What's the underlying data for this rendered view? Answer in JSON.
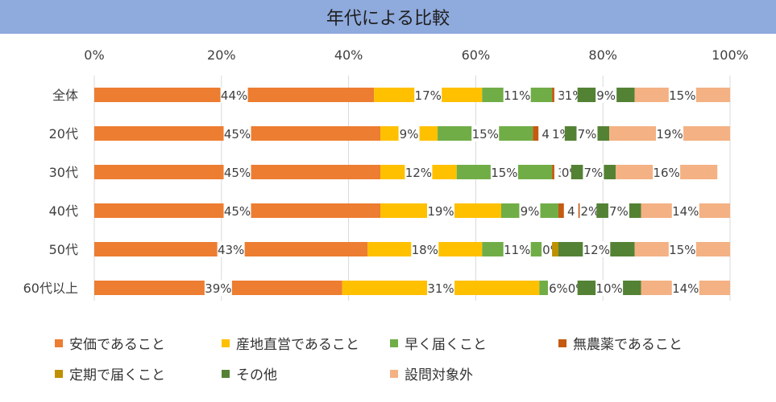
{
  "title": "年代による比較",
  "chart_data": {
    "type": "bar",
    "orientation": "horizontal",
    "stacked": "percent",
    "title": "年代による比較",
    "xlim": [
      0,
      100
    ],
    "x_ticks": [
      "0%",
      "20%",
      "40%",
      "60%",
      "80%",
      "100%"
    ],
    "grid": true,
    "legend_position": "bottom",
    "categories": [
      "全体",
      "20代",
      "30代",
      "40代",
      "50代",
      "60代以上"
    ],
    "series": [
      {
        "name": "安価であること",
        "color": "#ed7d31",
        "values": [
          44,
          45,
          45,
          45,
          43,
          39
        ],
        "labels": [
          "44%",
          "45%",
          "45%",
          "45%",
          "43%",
          "39%"
        ]
      },
      {
        "name": "産地直営であること",
        "color": "#ffc000",
        "values": [
          17,
          9,
          12,
          19,
          18,
          31
        ],
        "labels": [
          "17%",
          "9%",
          "12%",
          "19%",
          "18%",
          "31%"
        ]
      },
      {
        "name": "早く届くこと",
        "color": "#70ad47",
        "values": [
          11,
          15,
          15,
          9,
          11,
          6
        ],
        "labels": [
          "11%",
          "15%",
          "15%",
          "9%",
          "11%",
          "6%"
        ]
      },
      {
        "name": "無農薬であること",
        "color": "#c55a11",
        "values": [
          3,
          4,
          3,
          4,
          0,
          0
        ],
        "labels": [
          "3",
          "4",
          "3",
          "4",
          "0%",
          "0%"
        ]
      },
      {
        "name": "定期で届くこと",
        "color": "#bf9000",
        "values": [
          1,
          1,
          0,
          2,
          1,
          0
        ],
        "labels": [
          "1%",
          "1%",
          "0%",
          "2%",
          "",
          ""
        ]
      },
      {
        "name": "その他",
        "color": "#548235",
        "values": [
          9,
          7,
          7,
          7,
          12,
          10
        ],
        "labels": [
          "9%",
          "7%",
          "7%",
          "7%",
          "12%",
          "10%"
        ]
      },
      {
        "name": "設問対象外",
        "color": "#f4b183",
        "values": [
          15,
          19,
          16,
          14,
          15,
          14
        ],
        "labels": [
          "15%",
          "19%",
          "16%",
          "14%",
          "15%",
          "14%"
        ]
      }
    ]
  }
}
